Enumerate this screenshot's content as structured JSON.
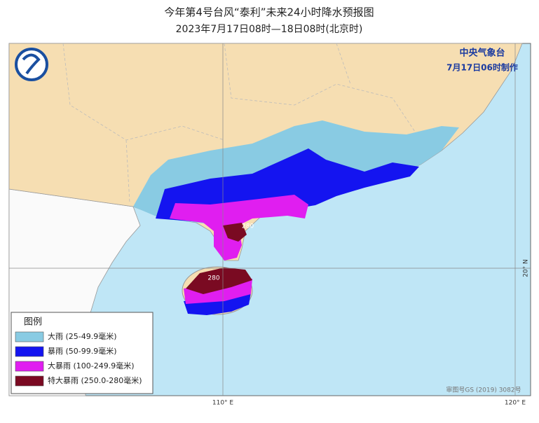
{
  "header": {
    "title": "今年第4号台风“泰利”未来24小时降水预报图",
    "subtitle": "2023年7月17日08时—18日08时(北京时)"
  },
  "agency": {
    "name": "中央气象台",
    "issued": "7月17日06时制作"
  },
  "axes": {
    "lon_labels": [
      "110° E",
      "120° E"
    ],
    "lat_labels": [
      "20° N"
    ]
  },
  "annotations": [
    "280",
    "280"
  ],
  "legend": {
    "title": "图例",
    "items": [
      {
        "label": "大雨 (25-49.9毫米)",
        "color": "#89cbe3"
      },
      {
        "label": "暴雨 (50-99.9毫米)",
        "color": "#1414f0"
      },
      {
        "label": "大暴雨 (100-249.9毫米)",
        "color": "#e01ef0"
      },
      {
        "label": "特大暴雨 (250.0-280毫米)",
        "color": "#7a0a22"
      }
    ]
  },
  "credit": "审图号GS (2019) 3082号"
}
